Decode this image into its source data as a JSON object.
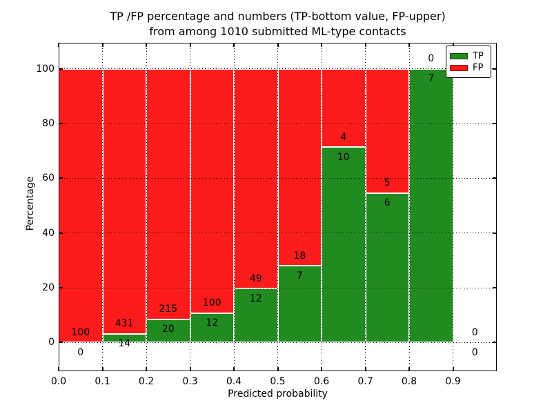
{
  "title": {
    "line1": "TP /FP percentage and numbers (TP-bottom value, FP-upper)",
    "line2": "from among 1010 submitted ML-type contacts"
  },
  "chart_data": {
    "type": "bar",
    "subtype": "stacked-percentage-histogram",
    "title": "TP /FP percentage and numbers (TP-bottom value, FP-upper)\nfrom among 1010 submitted ML-type contacts",
    "xlabel": "Predicted probability",
    "ylabel": "Percentage",
    "xlim": [
      0.0,
      1.0
    ],
    "ylim": [
      -10.5,
      109.5
    ],
    "grid": "dotted",
    "legend_position": "upper right",
    "xticks": {
      "values": [
        0.0,
        0.1,
        0.2,
        0.3,
        0.4,
        0.5,
        0.6,
        0.7,
        0.8,
        0.9
      ],
      "labels": [
        "0.0",
        "0.1",
        "0.2",
        "0.3",
        "0.4",
        "0.5",
        "0.6",
        "0.7",
        "0.8",
        "0.9"
      ]
    },
    "yticks": {
      "values": [
        0,
        20,
        40,
        60,
        80,
        100
      ],
      "labels": [
        "0",
        "20",
        "40",
        "60",
        "80",
        "100"
      ]
    },
    "series": [
      {
        "name": "TP",
        "color": "#218a21"
      },
      {
        "name": "FP",
        "color": "#fc1c1c"
      }
    ],
    "bins": [
      {
        "range": [
          0.0,
          0.1
        ],
        "tp": 0,
        "fp": 100
      },
      {
        "range": [
          0.1,
          0.2
        ],
        "tp": 14,
        "fp": 431
      },
      {
        "range": [
          0.2,
          0.3
        ],
        "tp": 20,
        "fp": 215
      },
      {
        "range": [
          0.3,
          0.4
        ],
        "tp": 12,
        "fp": 100
      },
      {
        "range": [
          0.4,
          0.5
        ],
        "tp": 12,
        "fp": 49
      },
      {
        "range": [
          0.5,
          0.6
        ],
        "tp": 7,
        "fp": 18
      },
      {
        "range": [
          0.6,
          0.7
        ],
        "tp": 10,
        "fp": 4
      },
      {
        "range": [
          0.7,
          0.8
        ],
        "tp": 6,
        "fp": 5
      },
      {
        "range": [
          0.8,
          0.9
        ],
        "tp": 7,
        "fp": 0
      },
      {
        "range": [
          0.9,
          1.0
        ],
        "tp": 0,
        "fp": 0
      }
    ],
    "annotation_note": "FP count shown above TP/FP stack boundary, TP count shown below it"
  },
  "legend": {
    "tp_label": "TP",
    "fp_label": "FP"
  }
}
